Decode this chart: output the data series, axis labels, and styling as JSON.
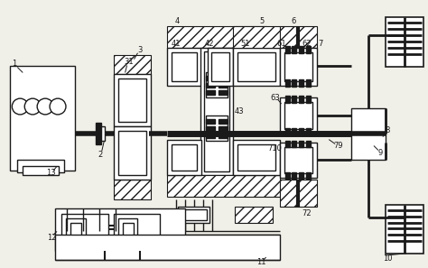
{
  "bg_color": "#f0efe8",
  "line_color": "#1a1a1a",
  "fig_width": 4.74,
  "fig_height": 2.97,
  "dpi": 100
}
